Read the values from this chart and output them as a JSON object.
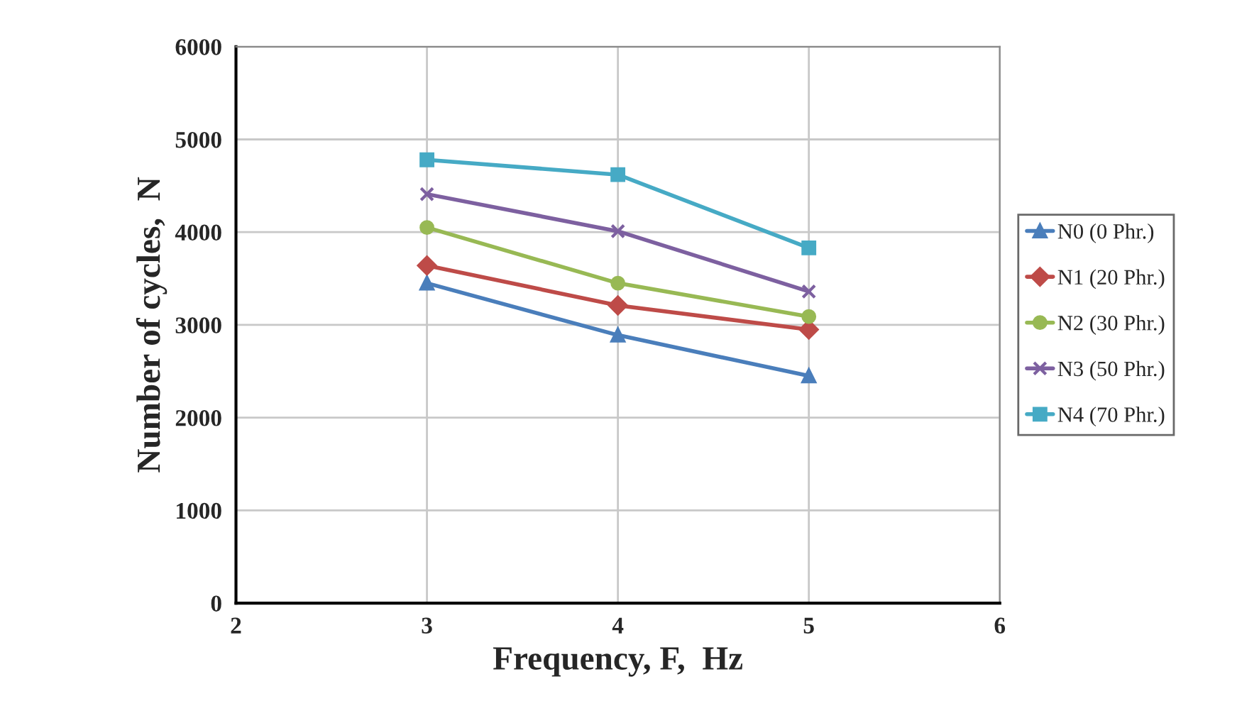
{
  "chart_data": {
    "type": "line",
    "xlabel": "Frequency, F,  Hz",
    "ylabel": "Number of cycles,  N",
    "x": [
      3,
      4,
      5
    ],
    "series": [
      {
        "name": "N0 (0 Phr.)",
        "color": "#4a7ebb",
        "marker": "triangle",
        "values": [
          3450,
          2890,
          2450
        ]
      },
      {
        "name": "N1 (20 Phr.)",
        "color": "#be4b48",
        "marker": "diamond",
        "values": [
          3640,
          3210,
          2950
        ]
      },
      {
        "name": "N2 (30 Phr.)",
        "color": "#98b954",
        "marker": "circle",
        "values": [
          4050,
          3450,
          3090
        ]
      },
      {
        "name": "N3 (50 Phr.)",
        "color": "#7d60a0",
        "marker": "cross",
        "values": [
          4410,
          4010,
          3360
        ]
      },
      {
        "name": "N4 (70 Phr.)",
        "color": "#46aac5",
        "marker": "square",
        "values": [
          4780,
          4620,
          3830
        ]
      }
    ],
    "xlim": [
      2,
      6
    ],
    "xticks": [
      2,
      3,
      4,
      5,
      6
    ],
    "ylim": [
      0,
      6000
    ],
    "yticks": [
      0,
      1000,
      2000,
      3000,
      4000,
      5000,
      6000
    ],
    "grid": true,
    "legend": "right",
    "line_style": "solid"
  }
}
